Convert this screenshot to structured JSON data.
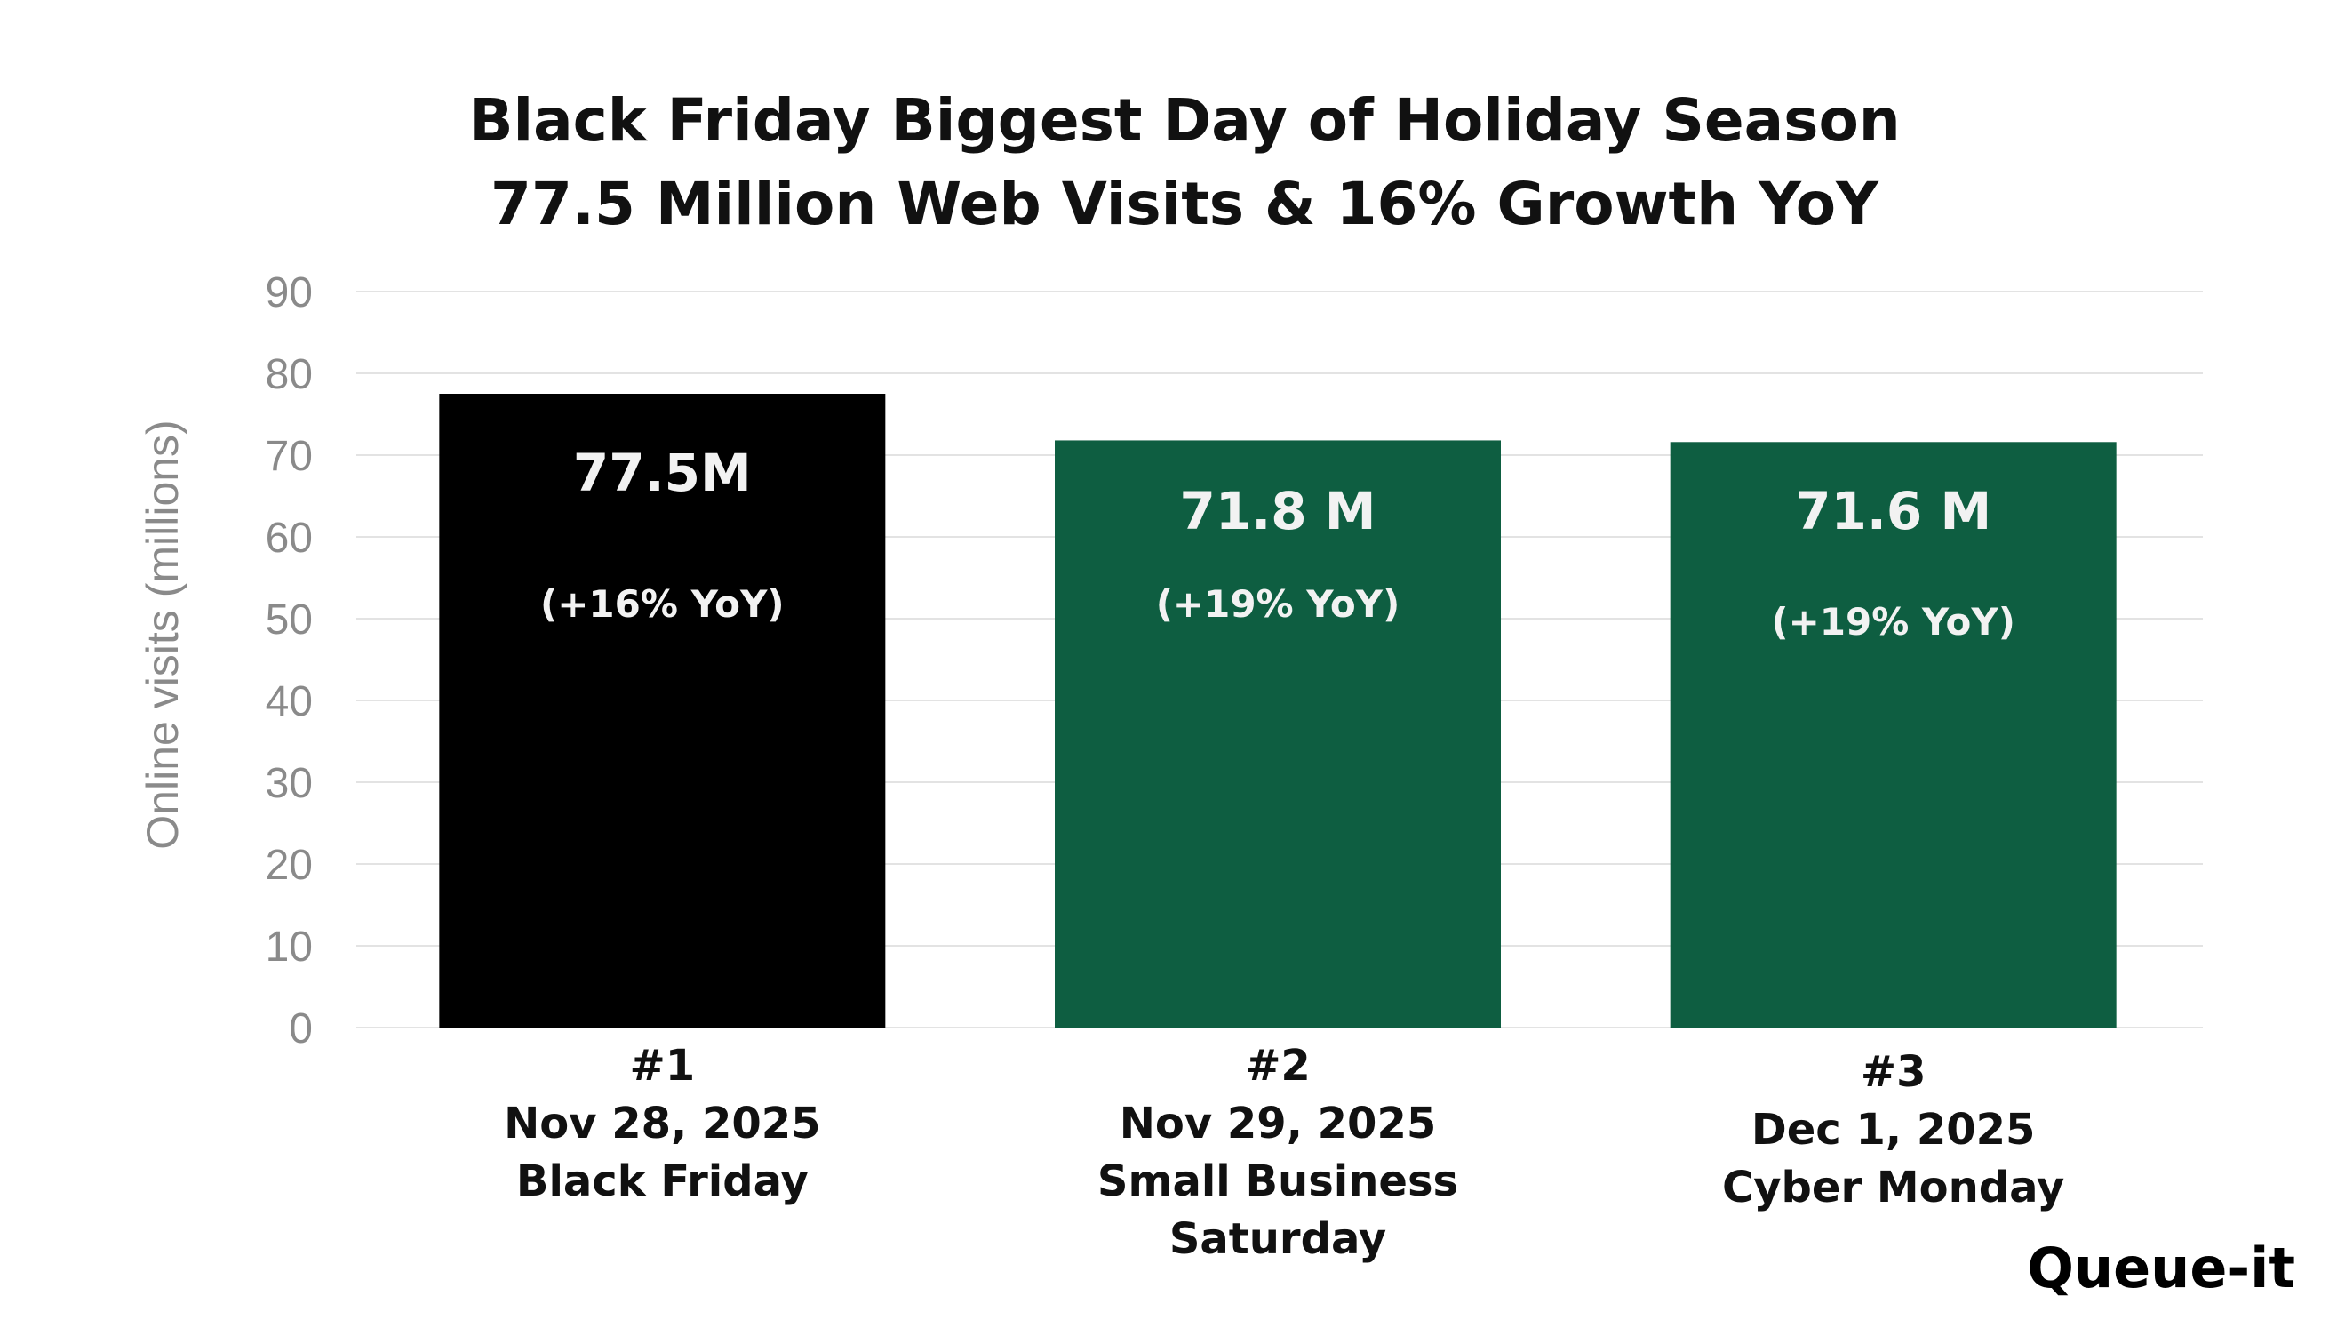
{
  "chart_data": {
    "type": "bar",
    "title": [
      "Black Friday Biggest Day of Holiday Season",
      "77.5 Million Web Visits & 16% Growth YoY"
    ],
    "ylabel": "Online visits (millions)",
    "xlabel": "",
    "ylim": [
      0,
      90
    ],
    "yticks": [
      0,
      10,
      20,
      30,
      40,
      50,
      60,
      70,
      80,
      90
    ],
    "grid": true,
    "categories": [
      [
        "#1",
        "Nov 28, 2025",
        "Black Friday"
      ],
      [
        "#2",
        "Nov 29, 2025",
        "Small Business",
        "Saturday"
      ],
      [
        "#3",
        "Dec 1, 2025",
        "Cyber Monday"
      ]
    ],
    "values": [
      77.5,
      71.8,
      71.6
    ],
    "value_labels": [
      "77.5M",
      "71.8 M",
      "71.6 M"
    ],
    "yoy_labels": [
      "(+16% YoY)",
      "(+19% YoY)",
      "(+19% YoY)"
    ],
    "bar_colors": [
      "#000000",
      "#0e5e41",
      "#0e5e41"
    ],
    "gridline_color": "#e3e3e3"
  },
  "logo": "Queue-it"
}
